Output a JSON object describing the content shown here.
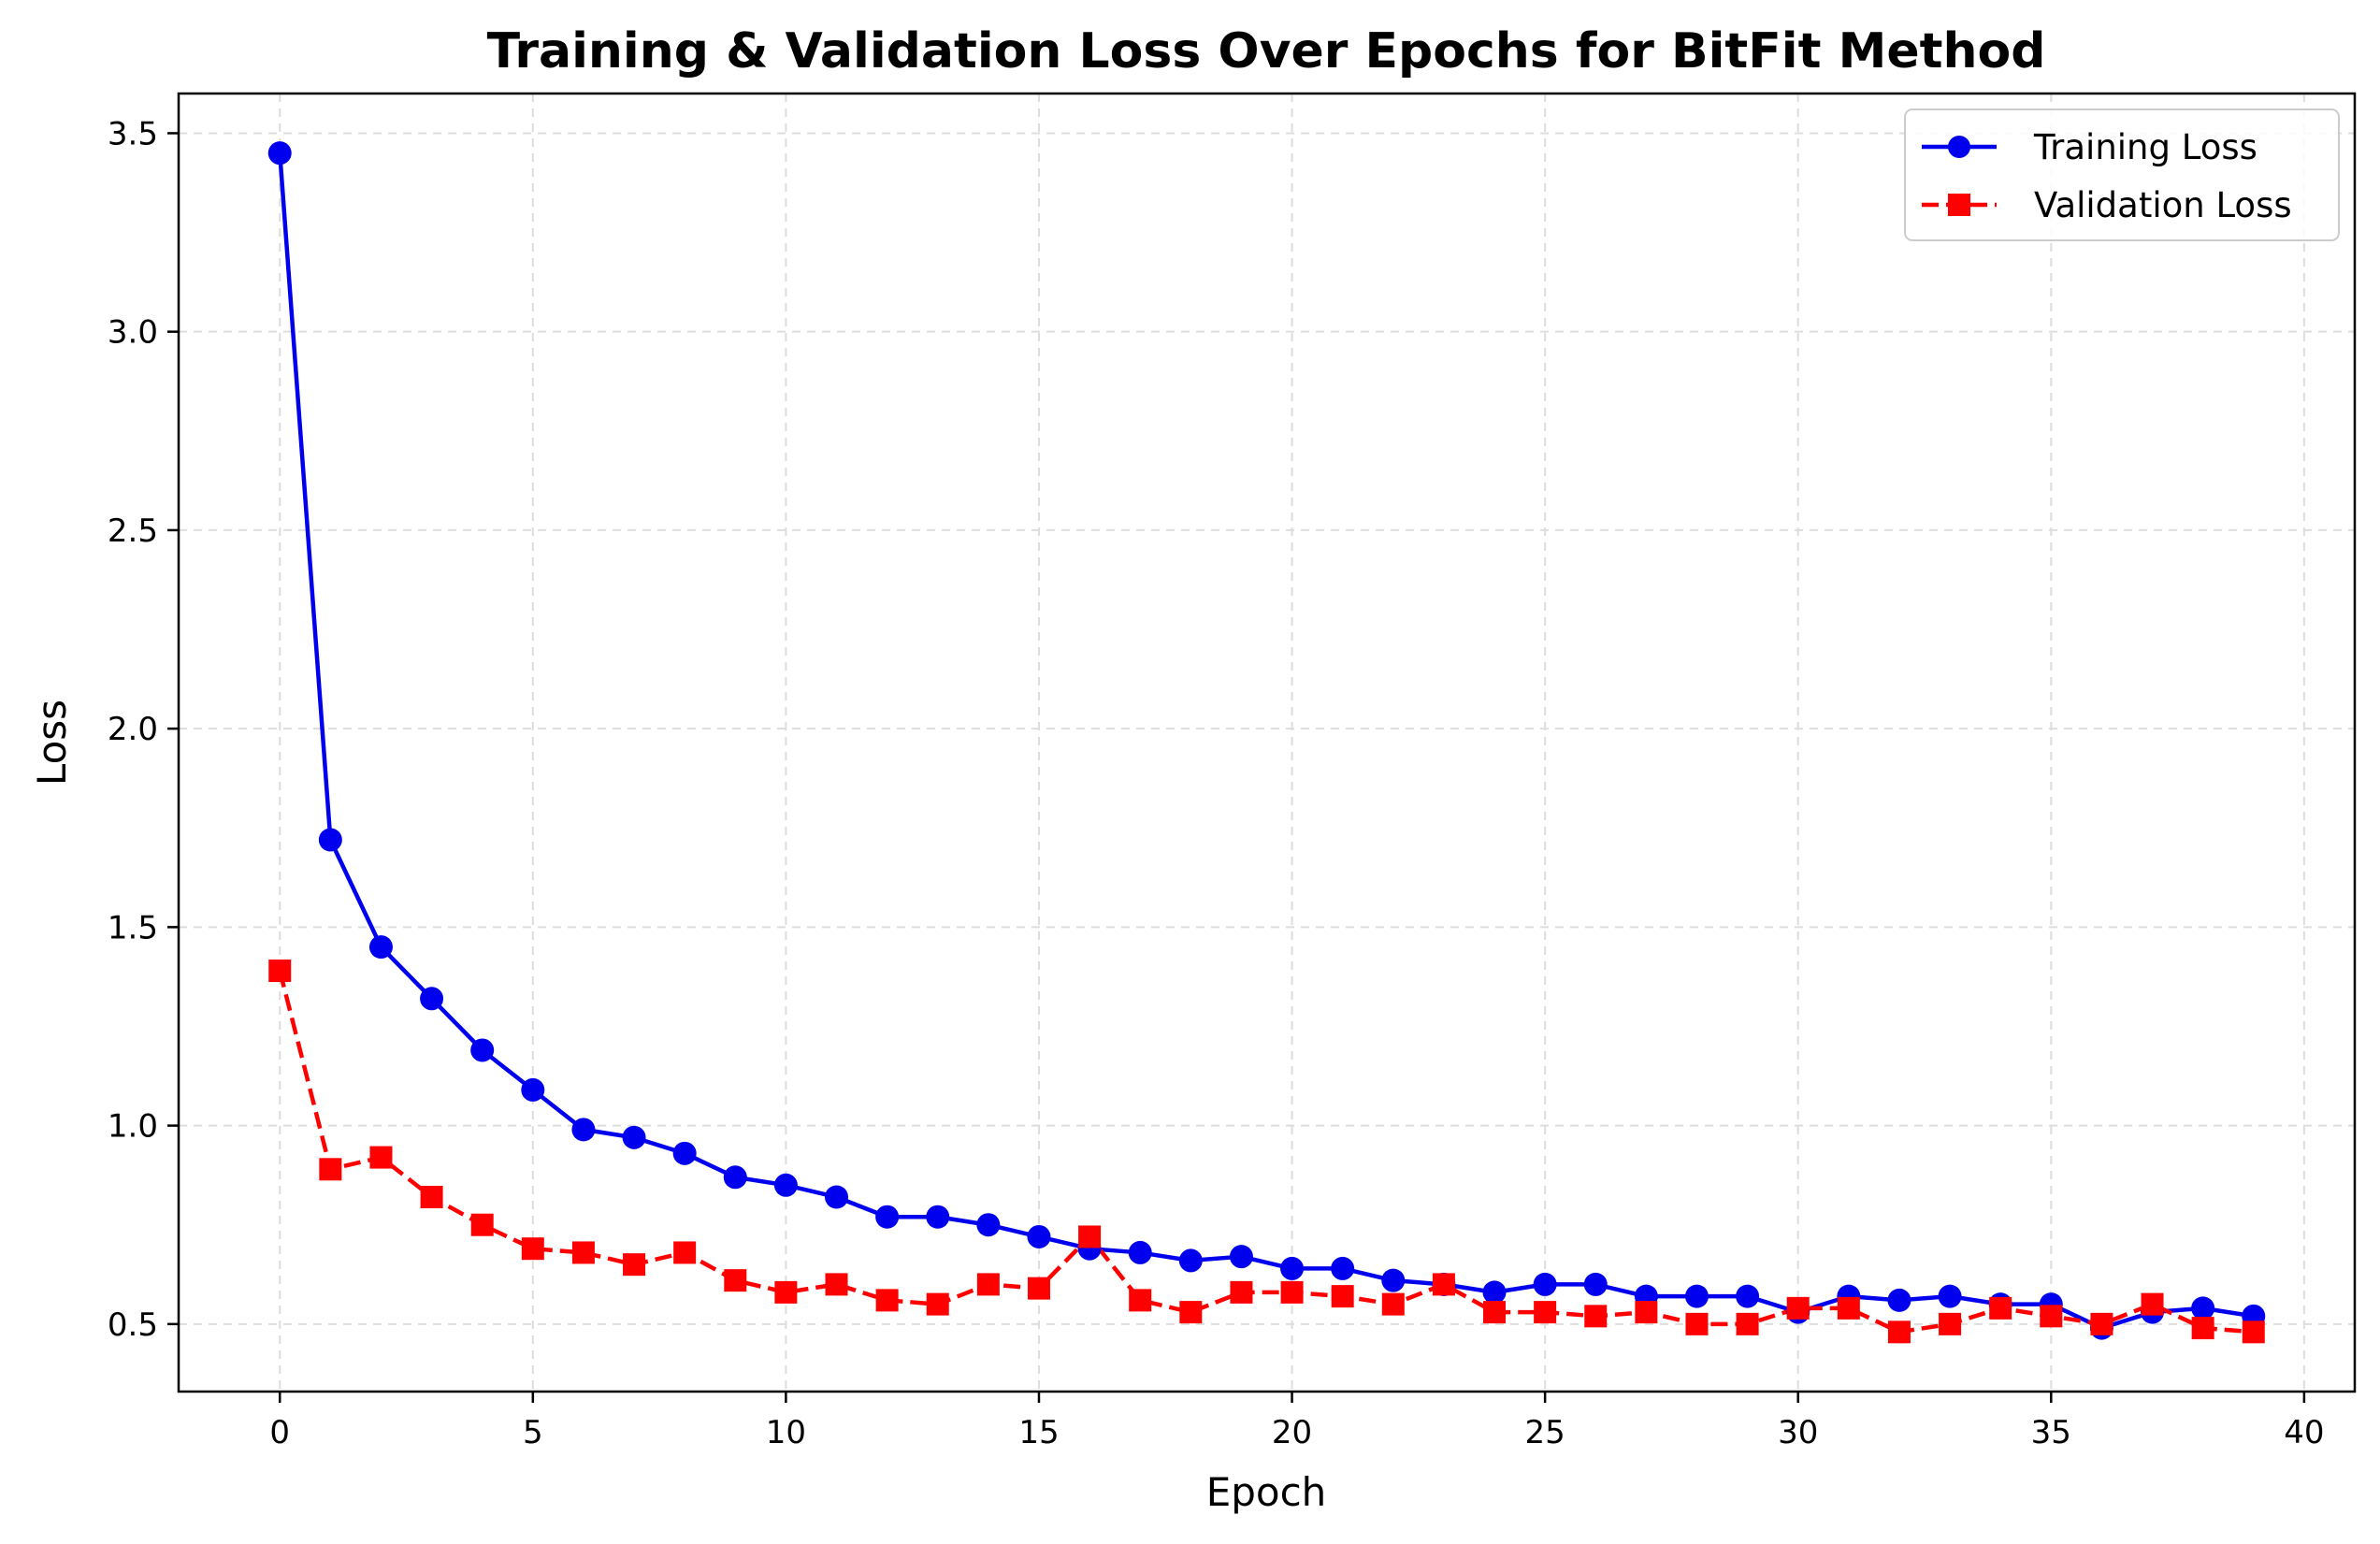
{
  "chart_data": {
    "type": "line",
    "title": "Training & Validation Loss Over Epochs for BitFit Method",
    "xlabel": "Epoch",
    "ylabel": "Loss",
    "xlim": [
      -2,
      41
    ],
    "ylim": [
      0.33,
      3.6
    ],
    "xticks": [
      "0",
      "5",
      "10",
      "15",
      "20",
      "25",
      "30",
      "35",
      "40"
    ],
    "yticks": [
      "0.5",
      "1.0",
      "1.5",
      "2.0",
      "2.5",
      "3.0",
      "3.5"
    ],
    "grid": true,
    "legend_position": "top-right",
    "x": [
      0,
      1,
      2,
      3,
      4,
      5,
      6,
      7,
      8,
      9,
      10,
      11,
      12,
      13,
      14,
      15,
      16,
      17,
      18,
      19,
      20,
      21,
      22,
      23,
      24,
      25,
      26,
      27,
      28,
      29,
      30,
      31,
      32,
      33,
      34,
      35,
      36,
      37,
      38,
      39
    ],
    "series": [
      {
        "name": "Training Loss",
        "color": "#0000ee",
        "line_style": "solid",
        "marker": "circle",
        "values": [
          3.45,
          1.72,
          1.45,
          1.32,
          1.19,
          1.09,
          0.99,
          0.97,
          0.93,
          0.87,
          0.85,
          0.82,
          0.77,
          0.77,
          0.75,
          0.72,
          0.69,
          0.68,
          0.66,
          0.67,
          0.64,
          0.64,
          0.61,
          0.6,
          0.58,
          0.6,
          0.6,
          0.57,
          0.57,
          0.57,
          0.53,
          0.57,
          0.56,
          0.57,
          0.55,
          0.55,
          0.49,
          0.53,
          0.54,
          0.52
        ]
      },
      {
        "name": "Validation Loss",
        "color": "#ff0000",
        "line_style": "dashed",
        "marker": "square",
        "values": [
          1.39,
          0.89,
          0.92,
          0.82,
          0.75,
          0.69,
          0.68,
          0.65,
          0.68,
          0.61,
          0.58,
          0.6,
          0.56,
          0.55,
          0.6,
          0.59,
          0.72,
          0.56,
          0.53,
          0.58,
          0.58,
          0.57,
          0.55,
          0.6,
          0.53,
          0.53,
          0.52,
          0.53,
          0.5,
          0.5,
          0.54,
          0.54,
          0.48,
          0.5,
          0.54,
          0.52,
          0.5,
          0.55,
          0.49,
          0.48
        ]
      }
    ]
  }
}
